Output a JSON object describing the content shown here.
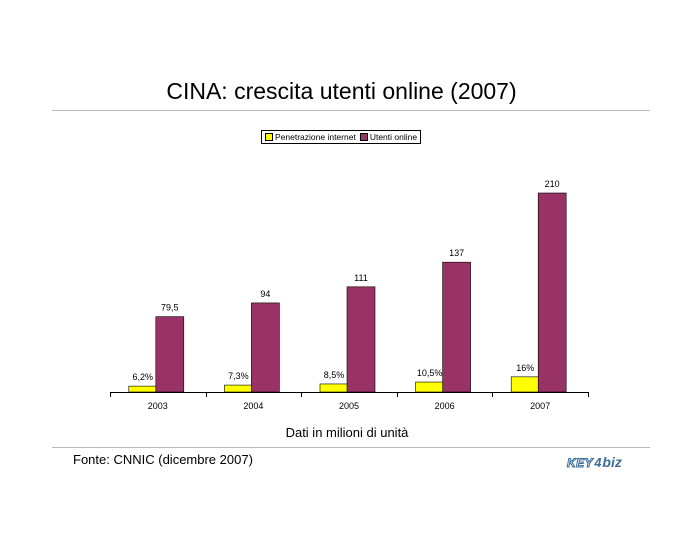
{
  "page": {
    "title": "CINA: crescita utenti online (2007)",
    "subtitle": "Dati in milioni di unità",
    "source": "Fonte: CNNIC (dicembre 2007)",
    "logo": {
      "key": "KEY",
      "four": "4",
      "biz": "biz"
    }
  },
  "colors": {
    "penetration": "#ffff00",
    "users": "#993366",
    "rule": "#b8b8b8",
    "logo": "#3d6f9a"
  },
  "chart_data": {
    "type": "bar",
    "categories": [
      "2003",
      "2004",
      "2005",
      "2006",
      "2007"
    ],
    "series": [
      {
        "name": "Penetrazione internet",
        "values": [
          6.2,
          7.3,
          8.5,
          10.5,
          16
        ],
        "labels": [
          "6,2%",
          "7,3%",
          "8,5%",
          "10,5%",
          "16%"
        ]
      },
      {
        "name": "Utenti online",
        "values": [
          79.5,
          94,
          111,
          137,
          210
        ],
        "labels": [
          "79,5",
          "94",
          "111",
          "137",
          "210"
        ]
      }
    ],
    "ylim": [
      0,
      210
    ],
    "legend": "top-center",
    "grid": false
  }
}
